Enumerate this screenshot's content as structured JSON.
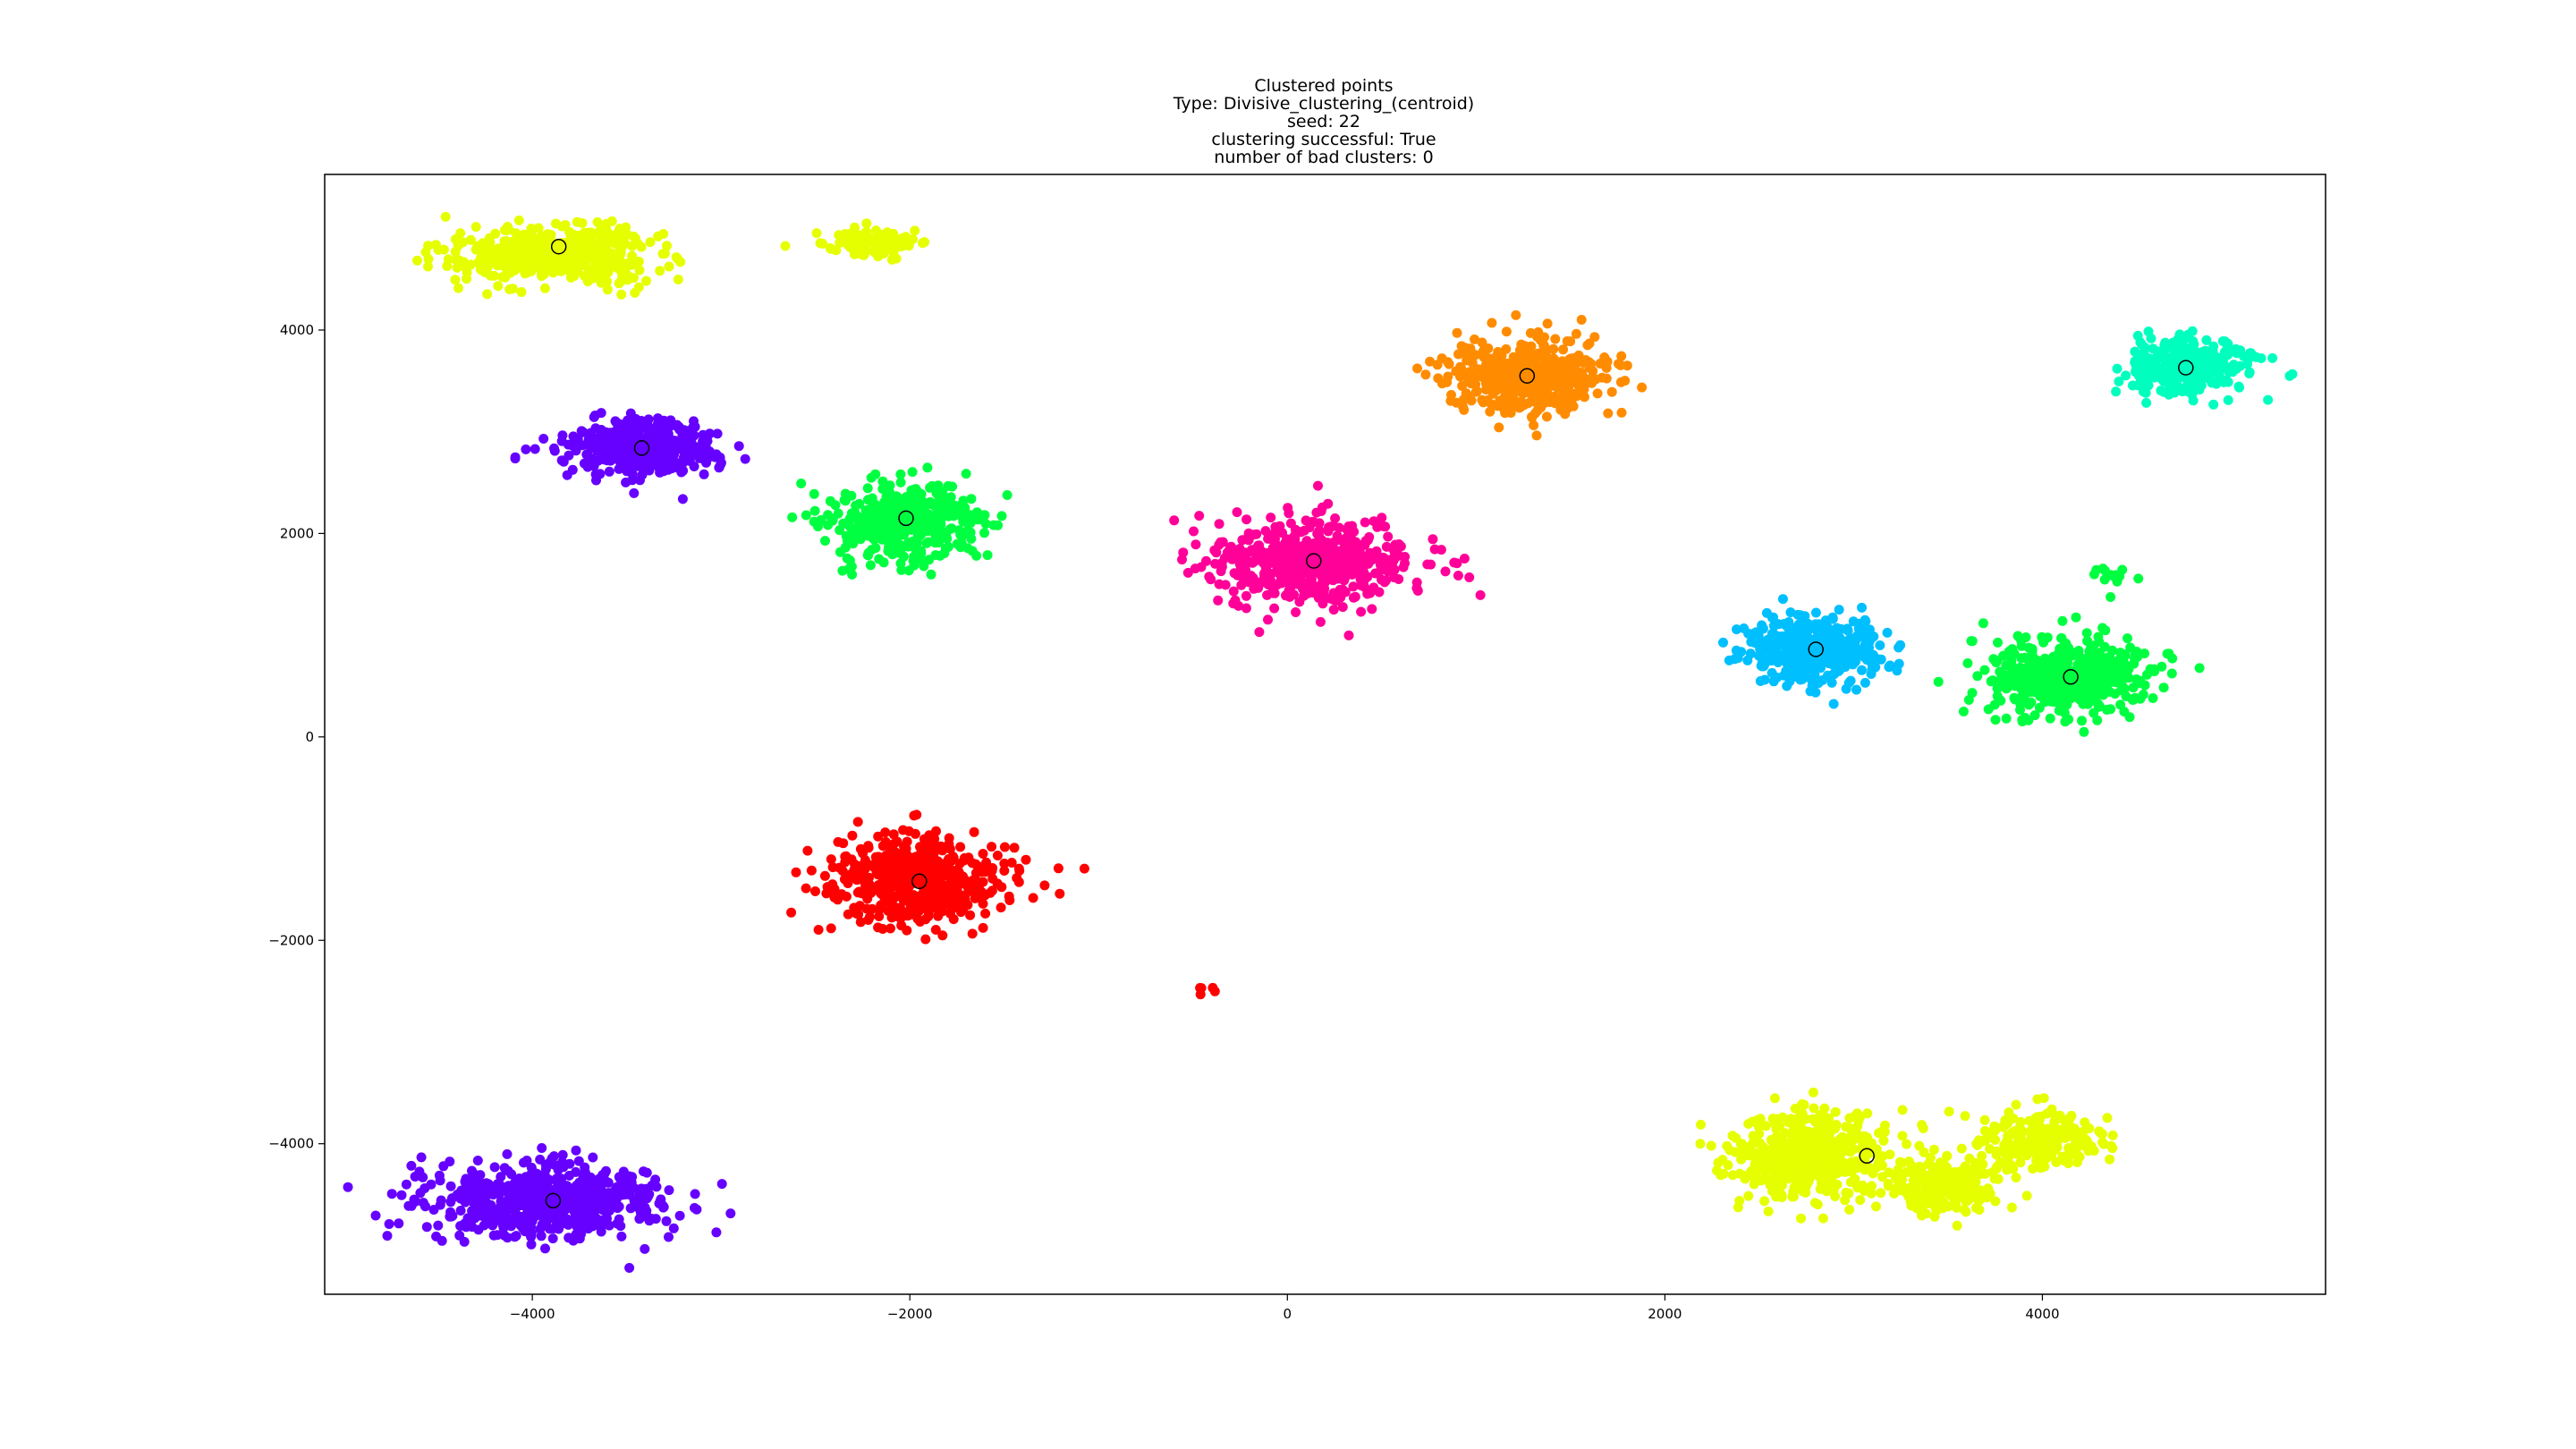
{
  "chart_data": {
    "type": "scatter",
    "title_lines": [
      "Clustered points",
      "Type: Divisive_clustering_(centroid)",
      "seed: 22",
      "clustering successful: True",
      "number of bad clusters: 0"
    ],
    "xlabel": "",
    "ylabel": "",
    "xlim": [
      -5100,
      5500
    ],
    "ylim": [
      -5480,
      5530
    ],
    "xticks": [
      -4000,
      -2000,
      0,
      2000,
      4000
    ],
    "xtick_labels": [
      "−4000",
      "−2000",
      "0",
      "2000",
      "4000"
    ],
    "yticks": [
      -4000,
      -2000,
      0,
      2000,
      4000
    ],
    "ytick_labels": [
      "−4000",
      "−2000",
      "0",
      "2000",
      "4000"
    ],
    "grid": false,
    "legend": false,
    "centroid_marker": "open black circle",
    "clusters": [
      {
        "color": "#e6ff00",
        "centroid": [
          -3860,
          4820
        ],
        "blobs": [
          {
            "cx": -3860,
            "cy": 4730,
            "sx": 600,
            "sy": 320,
            "n": 500
          },
          {
            "cx": -2210,
            "cy": 4860,
            "sx": 300,
            "sy": 170,
            "n": 90
          }
        ]
      },
      {
        "color": "#6600ff",
        "centroid": [
          -3420,
          2840
        ],
        "blobs": [
          {
            "cx": -3420,
            "cy": 2840,
            "sx": 470,
            "sy": 330,
            "n": 380
          }
        ]
      },
      {
        "color": "#00ff40",
        "centroid": [
          -2020,
          2150
        ],
        "blobs": [
          {
            "cx": -2020,
            "cy": 2150,
            "sx": 470,
            "sy": 470,
            "n": 420
          }
        ]
      },
      {
        "color": "#ff0000",
        "centroid": [
          -1950,
          -1420
        ],
        "blobs": [
          {
            "cx": -1950,
            "cy": -1420,
            "sx": 580,
            "sy": 480,
            "n": 500
          },
          {
            "cx": -420,
            "cy": -2480,
            "sx": 80,
            "sy": 80,
            "n": 5
          }
        ]
      },
      {
        "color": "#ff0099",
        "centroid": [
          140,
          1730
        ],
        "blobs": [
          {
            "cx": 140,
            "cy": 1730,
            "sx": 650,
            "sy": 480,
            "n": 560
          }
        ]
      },
      {
        "color": "#ff8c00",
        "centroid": [
          1270,
          3550
        ],
        "blobs": [
          {
            "cx": 1270,
            "cy": 3550,
            "sx": 520,
            "sy": 450,
            "n": 450
          }
        ]
      },
      {
        "color": "#00ffbf",
        "centroid": [
          4760,
          3630
        ],
        "blobs": [
          {
            "cx": 4760,
            "cy": 3630,
            "sx": 390,
            "sy": 320,
            "n": 320
          }
        ]
      },
      {
        "color": "#00bfff",
        "centroid": [
          2800,
          860
        ],
        "blobs": [
          {
            "cx": 2800,
            "cy": 860,
            "sx": 400,
            "sy": 390,
            "n": 380
          }
        ]
      },
      {
        "color": "#00ff40",
        "centroid": [
          4150,
          590
        ],
        "blobs": [
          {
            "cx": 4150,
            "cy": 590,
            "sx": 490,
            "sy": 460,
            "n": 480
          },
          {
            "cx": 4380,
            "cy": 1620,
            "sx": 120,
            "sy": 140,
            "n": 14
          }
        ]
      },
      {
        "color": "#e6ff00",
        "centroid": [
          3070,
          -4120
        ],
        "blobs": [
          {
            "cx": 2770,
            "cy": -4120,
            "sx": 520,
            "sy": 520,
            "n": 480
          },
          {
            "cx": 3500,
            "cy": -4400,
            "sx": 380,
            "sy": 330,
            "n": 220
          },
          {
            "cx": 3990,
            "cy": -3950,
            "sx": 380,
            "sy": 330,
            "n": 220
          }
        ]
      },
      {
        "color": "#6600ff",
        "centroid": [
          -3890,
          -4560
        ],
        "blobs": [
          {
            "cx": -3920,
            "cy": -4560,
            "sx": 780,
            "sy": 420,
            "n": 640
          }
        ]
      }
    ]
  }
}
